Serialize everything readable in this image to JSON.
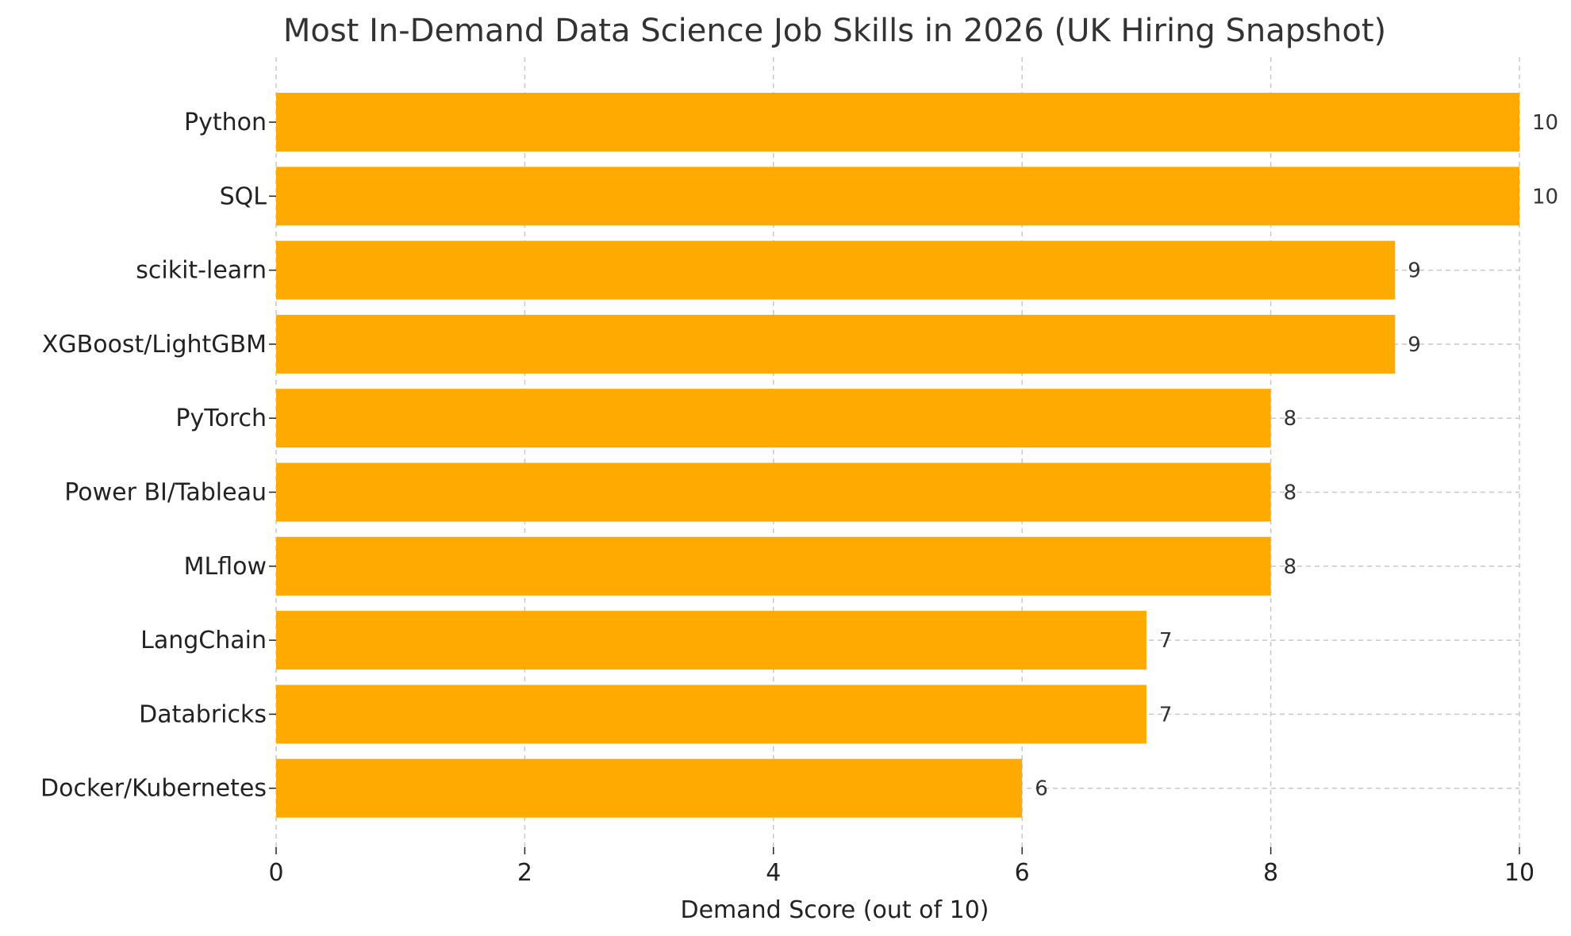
{
  "chart_data": {
    "type": "bar",
    "orientation": "horizontal",
    "title": "Most In-Demand Data Science Job Skills in 2026 (UK Hiring Snapshot)",
    "xlabel": "Demand Score (out of 10)",
    "ylabel": "",
    "categories": [
      "Python",
      "SQL",
      "scikit-learn",
      "XGBoost/LightGBM",
      "PyTorch",
      "Power BI/Tableau",
      "MLflow",
      "LangChain",
      "Databricks",
      "Docker/Kubernetes"
    ],
    "values": [
      10,
      10,
      9,
      9,
      8,
      8,
      8,
      7,
      7,
      6
    ],
    "value_labels": [
      "10",
      "10",
      "9",
      "9",
      "8",
      "8",
      "8",
      "7",
      "7",
      "6"
    ],
    "xlim": [
      0,
      10
    ],
    "xticks": [
      0,
      2,
      4,
      6,
      8,
      10
    ],
    "xtick_labels": [
      "0",
      "2",
      "4",
      "6",
      "8",
      "10"
    ],
    "grid": true,
    "legend": "none",
    "bar_color": "#FFAA00",
    "grid_color": "#C8C8C8"
  }
}
